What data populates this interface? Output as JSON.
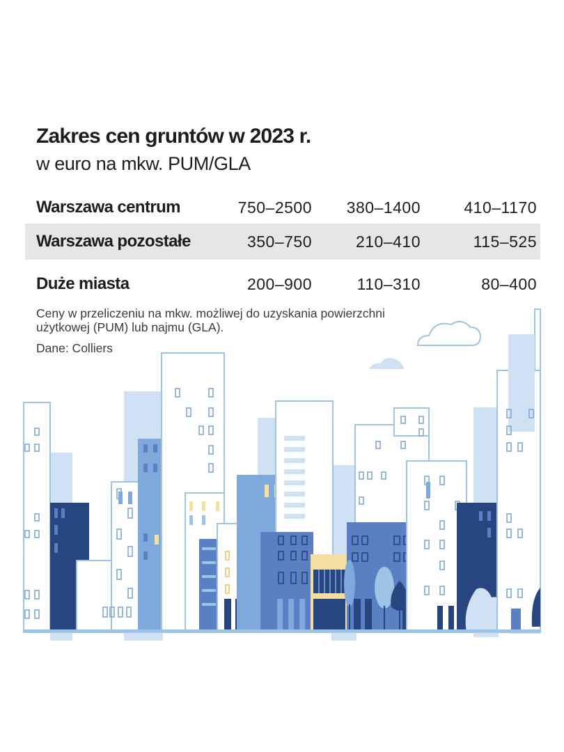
{
  "title": "Zakres cen gruntów w 2023 r.",
  "subtitle": "w euro na mkw. PUM/GLA",
  "rows": [
    {
      "name": "Warszawa centrum",
      "values": [
        "750–2500",
        "380–1400",
        "410–1170"
      ],
      "shaded": false
    },
    {
      "name": "Warszawa pozostałe",
      "values": [
        "350–750",
        "210–410",
        "115–525"
      ],
      "shaded": true
    },
    {
      "name": "Duże miasta",
      "values": [
        "200–900",
        "110–310",
        "80–400"
      ],
      "shaded": false
    }
  ],
  "note": "Ceny w przeliczeniu na mkw. możliwej do uzyskania powierzchni użytkowej (PUM) lub najmu (GLA).",
  "source": "Dane: Colliers",
  "illustration": {
    "name": "city-skyline-illustration",
    "colors": {
      "light": "#cfe1f3",
      "outline": "#9dc3e6",
      "mid": "#7fa9da",
      "blue": "#5a7fc2",
      "navy": "#27457f",
      "accent": "#f5dfa0"
    }
  }
}
